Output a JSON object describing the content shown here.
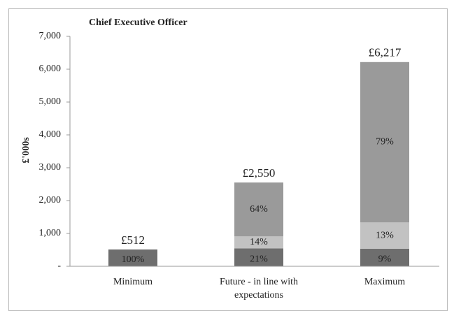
{
  "chart_data": {
    "type": "stacked_bar",
    "title": "Chief Executive Officer",
    "y_label": "£'000s",
    "categories": [
      "Minimum",
      "Future - in line with expectations",
      "Maximum"
    ],
    "series": [
      {
        "color": "#6e6e6e",
        "values": [
          512,
          545,
          535
        ],
        "value_labels": [
          "100%",
          "21%",
          "9%"
        ]
      },
      {
        "color": "#c2c2c2",
        "values": [
          null,
          365,
          800
        ],
        "value_labels": [
          null,
          "14%",
          "13%"
        ]
      },
      {
        "color": "#9a9a9a",
        "values": [
          null,
          1640,
          4882
        ],
        "value_labels": [
          null,
          "64%",
          "79%"
        ]
      }
    ],
    "totals": [
      512,
      2550,
      6217
    ],
    "total_labels": [
      "£512",
      "£2,550",
      "£6,217"
    ],
    "ylim": [
      0,
      7000
    ],
    "yticks": [
      {
        "value": 0,
        "label": "-"
      },
      {
        "value": 1000,
        "label": "1,000"
      },
      {
        "value": 2000,
        "label": "2,000"
      },
      {
        "value": 3000,
        "label": "3,000"
      },
      {
        "value": 4000,
        "label": "4,000"
      },
      {
        "value": 5000,
        "label": "5,000"
      },
      {
        "value": 6000,
        "label": "6,000"
      },
      {
        "value": 7000,
        "label": "7,000"
      }
    ]
  }
}
